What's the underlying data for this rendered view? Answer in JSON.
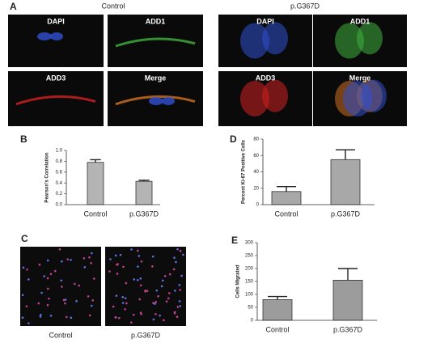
{
  "figure": {
    "panel_a": {
      "letter": "A",
      "groups": [
        {
          "title": "Control",
          "images": [
            "DAPI",
            "ADD1",
            "ADD3",
            "Merge"
          ]
        },
        {
          "title": "p.G367D",
          "images": [
            "DAPI",
            "ADD1",
            "ADD3",
            "Merge"
          ]
        }
      ]
    },
    "panel_c": {
      "letter": "C",
      "captions": [
        "Control",
        "p.G367D"
      ]
    }
  },
  "chart_data": [
    {
      "type": "bar",
      "panel": "B",
      "ylabel": "Pearson's Correlation",
      "categories": [
        "Control",
        "p.G367D"
      ],
      "values": [
        0.78,
        0.43
      ],
      "errors": [
        0.05,
        0.02
      ],
      "color": "#b4b4b4",
      "ylim": [
        0,
        1.0
      ],
      "yticks": [
        {
          "value": 0,
          "label": "0.0"
        },
        {
          "value": 0.2,
          "label": "0.2"
        },
        {
          "value": 0.4,
          "label": "0.4"
        },
        {
          "value": 0.6,
          "label": "0.6"
        },
        {
          "value": 0.8,
          "label": "0.8"
        },
        {
          "value": 1.0,
          "label": "1.0"
        }
      ]
    },
    {
      "type": "bar",
      "panel": "D",
      "ylabel": "Percent Ki-67 Positive Cells",
      "categories": [
        "Control",
        "p.G367D"
      ],
      "values": [
        16,
        55
      ],
      "errors": [
        6,
        12
      ],
      "color": "#a8a8a8",
      "ylim": [
        0,
        80
      ],
      "yticks": [
        0,
        20,
        40,
        60,
        80
      ]
    },
    {
      "type": "bar",
      "panel": "E",
      "ylabel": "Cells Migrated",
      "categories": [
        "Control",
        "p.G367D"
      ],
      "values": [
        80,
        155
      ],
      "errors": [
        12,
        45
      ],
      "color": "#9c9c9c",
      "ylim": [
        0,
        300
      ],
      "yticks": [
        0,
        50,
        100,
        150,
        200,
        250,
        300
      ]
    }
  ]
}
